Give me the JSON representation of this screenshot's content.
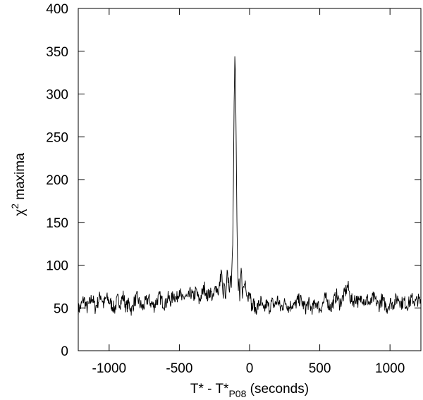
{
  "chart_data": {
    "type": "line",
    "xlabel": {
      "main": "T* - T*",
      "subscript": "P08",
      "suffix": " (seconds)"
    },
    "ylabel": {
      "symbol": "χ",
      "superscript": "2",
      "suffix": " maxima"
    },
    "xlim": [
      -1220,
      1220
    ],
    "ylim": [
      0,
      400
    ],
    "xticks": [
      -1000,
      -500,
      0,
      500,
      1000
    ],
    "yticks": [
      0,
      50,
      100,
      150,
      200,
      250,
      300,
      350,
      400
    ],
    "xtick_labels": [
      "-1000",
      "-500",
      "0",
      "500",
      "1000"
    ],
    "ytick_labels": [
      "0",
      "50",
      "100",
      "150",
      "200",
      "250",
      "300",
      "350",
      "400"
    ],
    "grid": false,
    "legend": "none",
    "line_color": "#000000",
    "series": [
      {
        "x": [
          -1220,
          -1200,
          -1180,
          -1160,
          -1140,
          -1120,
          -1100,
          -1080,
          -1060,
          -1040,
          -1020,
          -1000,
          -980,
          -960,
          -940,
          -920,
          -900,
          -880,
          -860,
          -840,
          -820,
          -800,
          -780,
          -760,
          -740,
          -720,
          -700,
          -680,
          -660,
          -640,
          -620,
          -600,
          -580,
          -560,
          -540,
          -520,
          -500,
          -480,
          -460,
          -440,
          -420,
          -400,
          -380,
          -360,
          -340,
          -320,
          -300,
          -280,
          -260,
          -240,
          -220,
          -200,
          -190,
          -180,
          -170,
          -160,
          -150,
          -140,
          -135,
          -130,
          -125,
          -120,
          -115,
          -110,
          -105,
          -100,
          -95,
          -90,
          -85,
          -80,
          -75,
          -70,
          -65,
          -60,
          -50,
          -40,
          -30,
          -20,
          -10,
          0,
          10,
          20,
          30,
          40,
          60,
          80,
          100,
          120,
          140,
          160,
          180,
          200,
          220,
          240,
          260,
          280,
          300,
          320,
          340,
          360,
          380,
          400,
          420,
          440,
          460,
          480,
          500,
          520,
          540,
          560,
          580,
          600,
          620,
          640,
          660,
          680,
          700,
          720,
          740,
          760,
          780,
          800,
          820,
          840,
          860,
          880,
          900,
          920,
          940,
          960,
          980,
          1000,
          1020,
          1040,
          1060,
          1080,
          1100,
          1120,
          1140,
          1160,
          1180,
          1200,
          1220
        ],
        "y": [
          48,
          52,
          61,
          49,
          55,
          63,
          50,
          57,
          66,
          54,
          62,
          58,
          53,
          49,
          60,
          56,
          64,
          51,
          55,
          47,
          58,
          62,
          54,
          50,
          57,
          61,
          55,
          52,
          59,
          63,
          57,
          54,
          62,
          58,
          66,
          60,
          72,
          58,
          64,
          60,
          68,
          62,
          70,
          58,
          66,
          74,
          63,
          70,
          60,
          76,
          68,
          95,
          62,
          78,
          55,
          88,
          82,
          70,
          90,
          75,
          100,
          125,
          200,
          290,
          345,
          320,
          240,
          150,
          95,
          70,
          85,
          55,
          80,
          95,
          68,
          75,
          82,
          70,
          62,
          75,
          55,
          50,
          56,
          48,
          52,
          58,
          45,
          55,
          50,
          56,
          53,
          60,
          49,
          54,
          57,
          50,
          55,
          52,
          58,
          60,
          54,
          50,
          56,
          49,
          52,
          57,
          48,
          54,
          62,
          56,
          50,
          58,
          65,
          55,
          60,
          68,
          76,
          60,
          58,
          62,
          55,
          64,
          57,
          60,
          54,
          62,
          58,
          52,
          60,
          55,
          50,
          57,
          54,
          59,
          62,
          55,
          58,
          53,
          57,
          61,
          56,
          60,
          55
        ]
      }
    ]
  }
}
